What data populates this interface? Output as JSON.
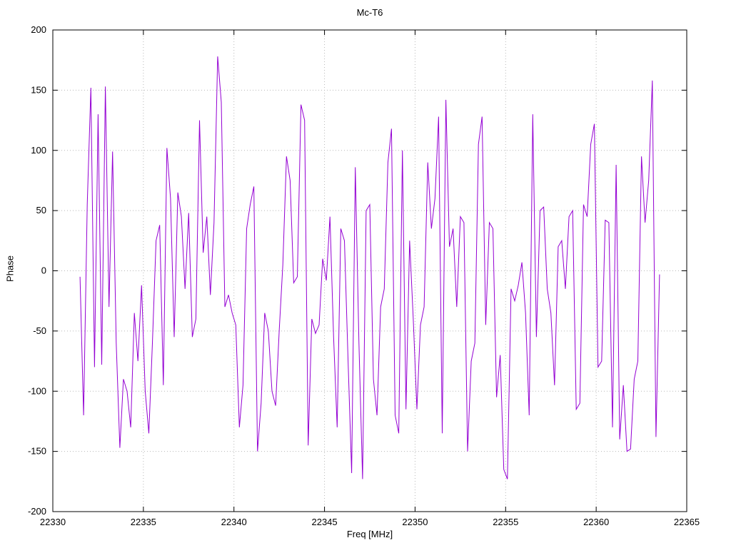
{
  "chart_data": {
    "type": "line",
    "title": "Mc-T6",
    "xlabel": "Freq [MHz]",
    "ylabel": "Phase",
    "xlim": [
      22330,
      22365
    ],
    "ylim": [
      -200,
      200
    ],
    "xticks": [
      22330,
      22335,
      22340,
      22345,
      22350,
      22355,
      22360,
      22365
    ],
    "yticks": [
      -200,
      -150,
      -100,
      -50,
      0,
      50,
      100,
      150,
      200
    ],
    "grid": true,
    "legend": "none",
    "line_color": "#9400d3",
    "series": [
      {
        "name": "phase",
        "x_start": 22331.5,
        "x_step": 0.2,
        "y": [
          -5,
          -120,
          55,
          152,
          -80,
          130,
          -78,
          153,
          -30,
          99,
          -60,
          -147,
          -90,
          -100,
          -130,
          -35,
          -75,
          -12,
          -100,
          -135,
          -60,
          25,
          38,
          -95,
          102,
          60,
          -55,
          65,
          45,
          -15,
          48,
          -55,
          -40,
          125,
          15,
          45,
          -20,
          40,
          178,
          140,
          -30,
          -20,
          -35,
          -45,
          -130,
          -95,
          35,
          55,
          70,
          -150,
          -110,
          -35,
          -50,
          -100,
          -112,
          -50,
          5,
          95,
          75,
          -10,
          -5,
          138,
          125,
          -145,
          -40,
          -52,
          -45,
          10,
          -8,
          45,
          -55,
          -130,
          35,
          25,
          -75,
          -168,
          86,
          -60,
          -173,
          50,
          55,
          -90,
          -120,
          -30,
          -15,
          90,
          118,
          -120,
          -135,
          100,
          -115,
          25,
          -40,
          -115,
          -45,
          -30,
          90,
          35,
          60,
          128,
          -135,
          142,
          20,
          35,
          -30,
          45,
          40,
          -150,
          -75,
          -60,
          105,
          128,
          -45,
          40,
          35,
          -105,
          -70,
          -165,
          -173,
          -15,
          -25,
          -12,
          7,
          -35,
          -120,
          130,
          -55,
          50,
          53,
          -15,
          -35,
          -95,
          20,
          25,
          -15,
          45,
          50,
          -115,
          -110,
          55,
          45,
          105,
          122,
          -80,
          -75,
          42,
          40,
          -130,
          88,
          -140,
          -95,
          -150,
          -148,
          -90,
          -75,
          95,
          40,
          75,
          158,
          -138,
          -3
        ]
      }
    ]
  }
}
